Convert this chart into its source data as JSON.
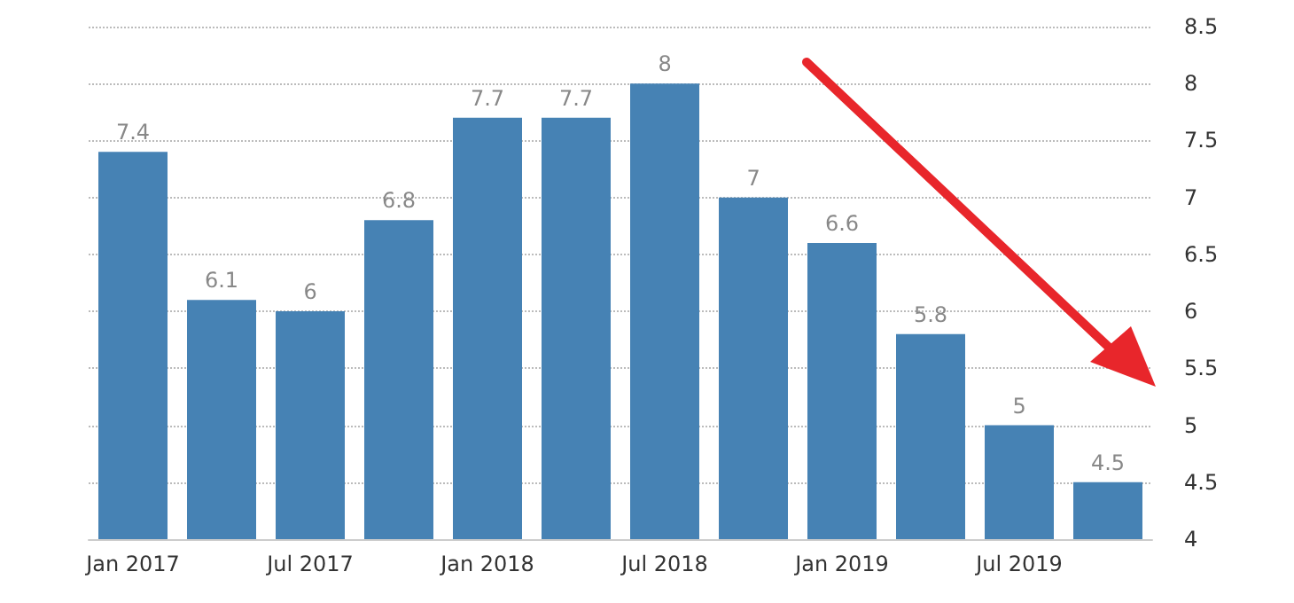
{
  "chart_data": {
    "type": "bar",
    "categories": [
      "Jan 2017",
      null,
      "Jul 2017",
      null,
      "Jan 2018",
      null,
      "Jul 2018",
      null,
      "Jan 2019",
      null,
      "Jul 2019",
      null
    ],
    "values": [
      7.4,
      6.1,
      6,
      6.8,
      7.7,
      7.7,
      8,
      7,
      6.6,
      5.8,
      5,
      4.5
    ],
    "color": "#4682b4",
    "ylim": [
      4,
      8.5
    ],
    "yticks": [
      4,
      4.5,
      5,
      5.5,
      6,
      6.5,
      7,
      7.5,
      8,
      8.5
    ],
    "grid": "y",
    "data_labels": true
  }
}
